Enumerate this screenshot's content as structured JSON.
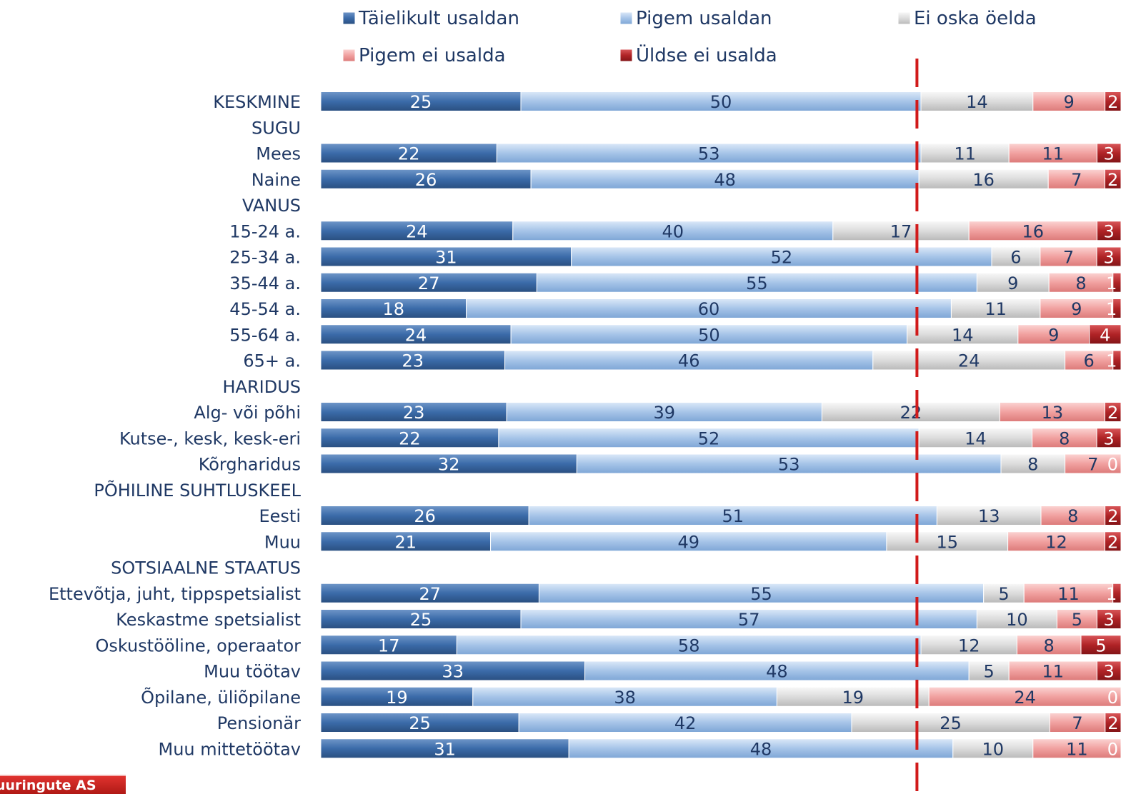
{
  "logo_text": "uuringute AS",
  "chart_data": {
    "type": "bar",
    "orientation": "horizontal-stacked-100",
    "legend": [
      "Täielikult usaldan",
      "Pigem usaldan",
      "Ei oska öelda",
      "Pigem ei usalda",
      "Üldse ei usalda"
    ],
    "legend_position": "top",
    "colors": [
      "#3b6ba9",
      "#a6c4e8",
      "#dcdcdc",
      "#f1a1a0",
      "#b02326"
    ],
    "reference_line": {
      "value": 74.5,
      "color": "#d11a1a",
      "style": "dashed"
    },
    "rows": [
      {
        "label": "KESKMINE",
        "values": [
          25,
          50,
          14,
          9,
          2
        ]
      },
      {
        "label": "SUGU",
        "header": true
      },
      {
        "label": "Mees",
        "values": [
          22,
          53,
          11,
          11,
          3
        ]
      },
      {
        "label": "Naine",
        "values": [
          26,
          48,
          16,
          7,
          2
        ]
      },
      {
        "label": "VANUS",
        "header": true
      },
      {
        "label": "15-24 a.",
        "values": [
          24,
          40,
          17,
          16,
          3
        ]
      },
      {
        "label": "25-34 a.",
        "values": [
          31,
          52,
          6,
          7,
          3
        ]
      },
      {
        "label": "35-44 a.",
        "values": [
          27,
          55,
          9,
          8,
          1
        ]
      },
      {
        "label": "45-54 a.",
        "values": [
          18,
          60,
          11,
          9,
          1
        ]
      },
      {
        "label": "55-64 a.",
        "values": [
          24,
          50,
          14,
          9,
          4
        ]
      },
      {
        "label": "65+ a.",
        "values": [
          23,
          46,
          24,
          6,
          1
        ]
      },
      {
        "label": "HARIDUS",
        "header": true
      },
      {
        "label": "Alg- või põhi",
        "values": [
          23,
          39,
          22,
          13,
          2
        ]
      },
      {
        "label": "Kutse-, kesk, kesk-eri",
        "values": [
          22,
          52,
          14,
          8,
          3
        ]
      },
      {
        "label": "Kõrgharidus",
        "values": [
          32,
          53,
          8,
          7,
          0
        ]
      },
      {
        "label": "PÕHILINE SUHTLUSKEEL",
        "header": true
      },
      {
        "label": "Eesti",
        "values": [
          26,
          51,
          13,
          8,
          2
        ]
      },
      {
        "label": "Muu",
        "values": [
          21,
          49,
          15,
          12,
          2
        ]
      },
      {
        "label": "SOTSIAALNE STAATUS",
        "header": true
      },
      {
        "label": "Ettevõtja, juht, tippspetsialist",
        "values": [
          27,
          55,
          5,
          11,
          1
        ]
      },
      {
        "label": "Keskastme spetsialist",
        "values": [
          25,
          57,
          10,
          5,
          3
        ]
      },
      {
        "label": "Oskustööline, operaator",
        "values": [
          17,
          58,
          12,
          8,
          5
        ]
      },
      {
        "label": "Muu töötav",
        "values": [
          33,
          48,
          5,
          11,
          3
        ]
      },
      {
        "label": "Õpilane, üliõpilane",
        "values": [
          19,
          38,
          19,
          24,
          0
        ]
      },
      {
        "label": "Pensionär",
        "values": [
          25,
          42,
          25,
          7,
          2
        ]
      },
      {
        "label": "Muu mittetöötav",
        "values": [
          31,
          48,
          10,
          11,
          0
        ]
      }
    ]
  }
}
